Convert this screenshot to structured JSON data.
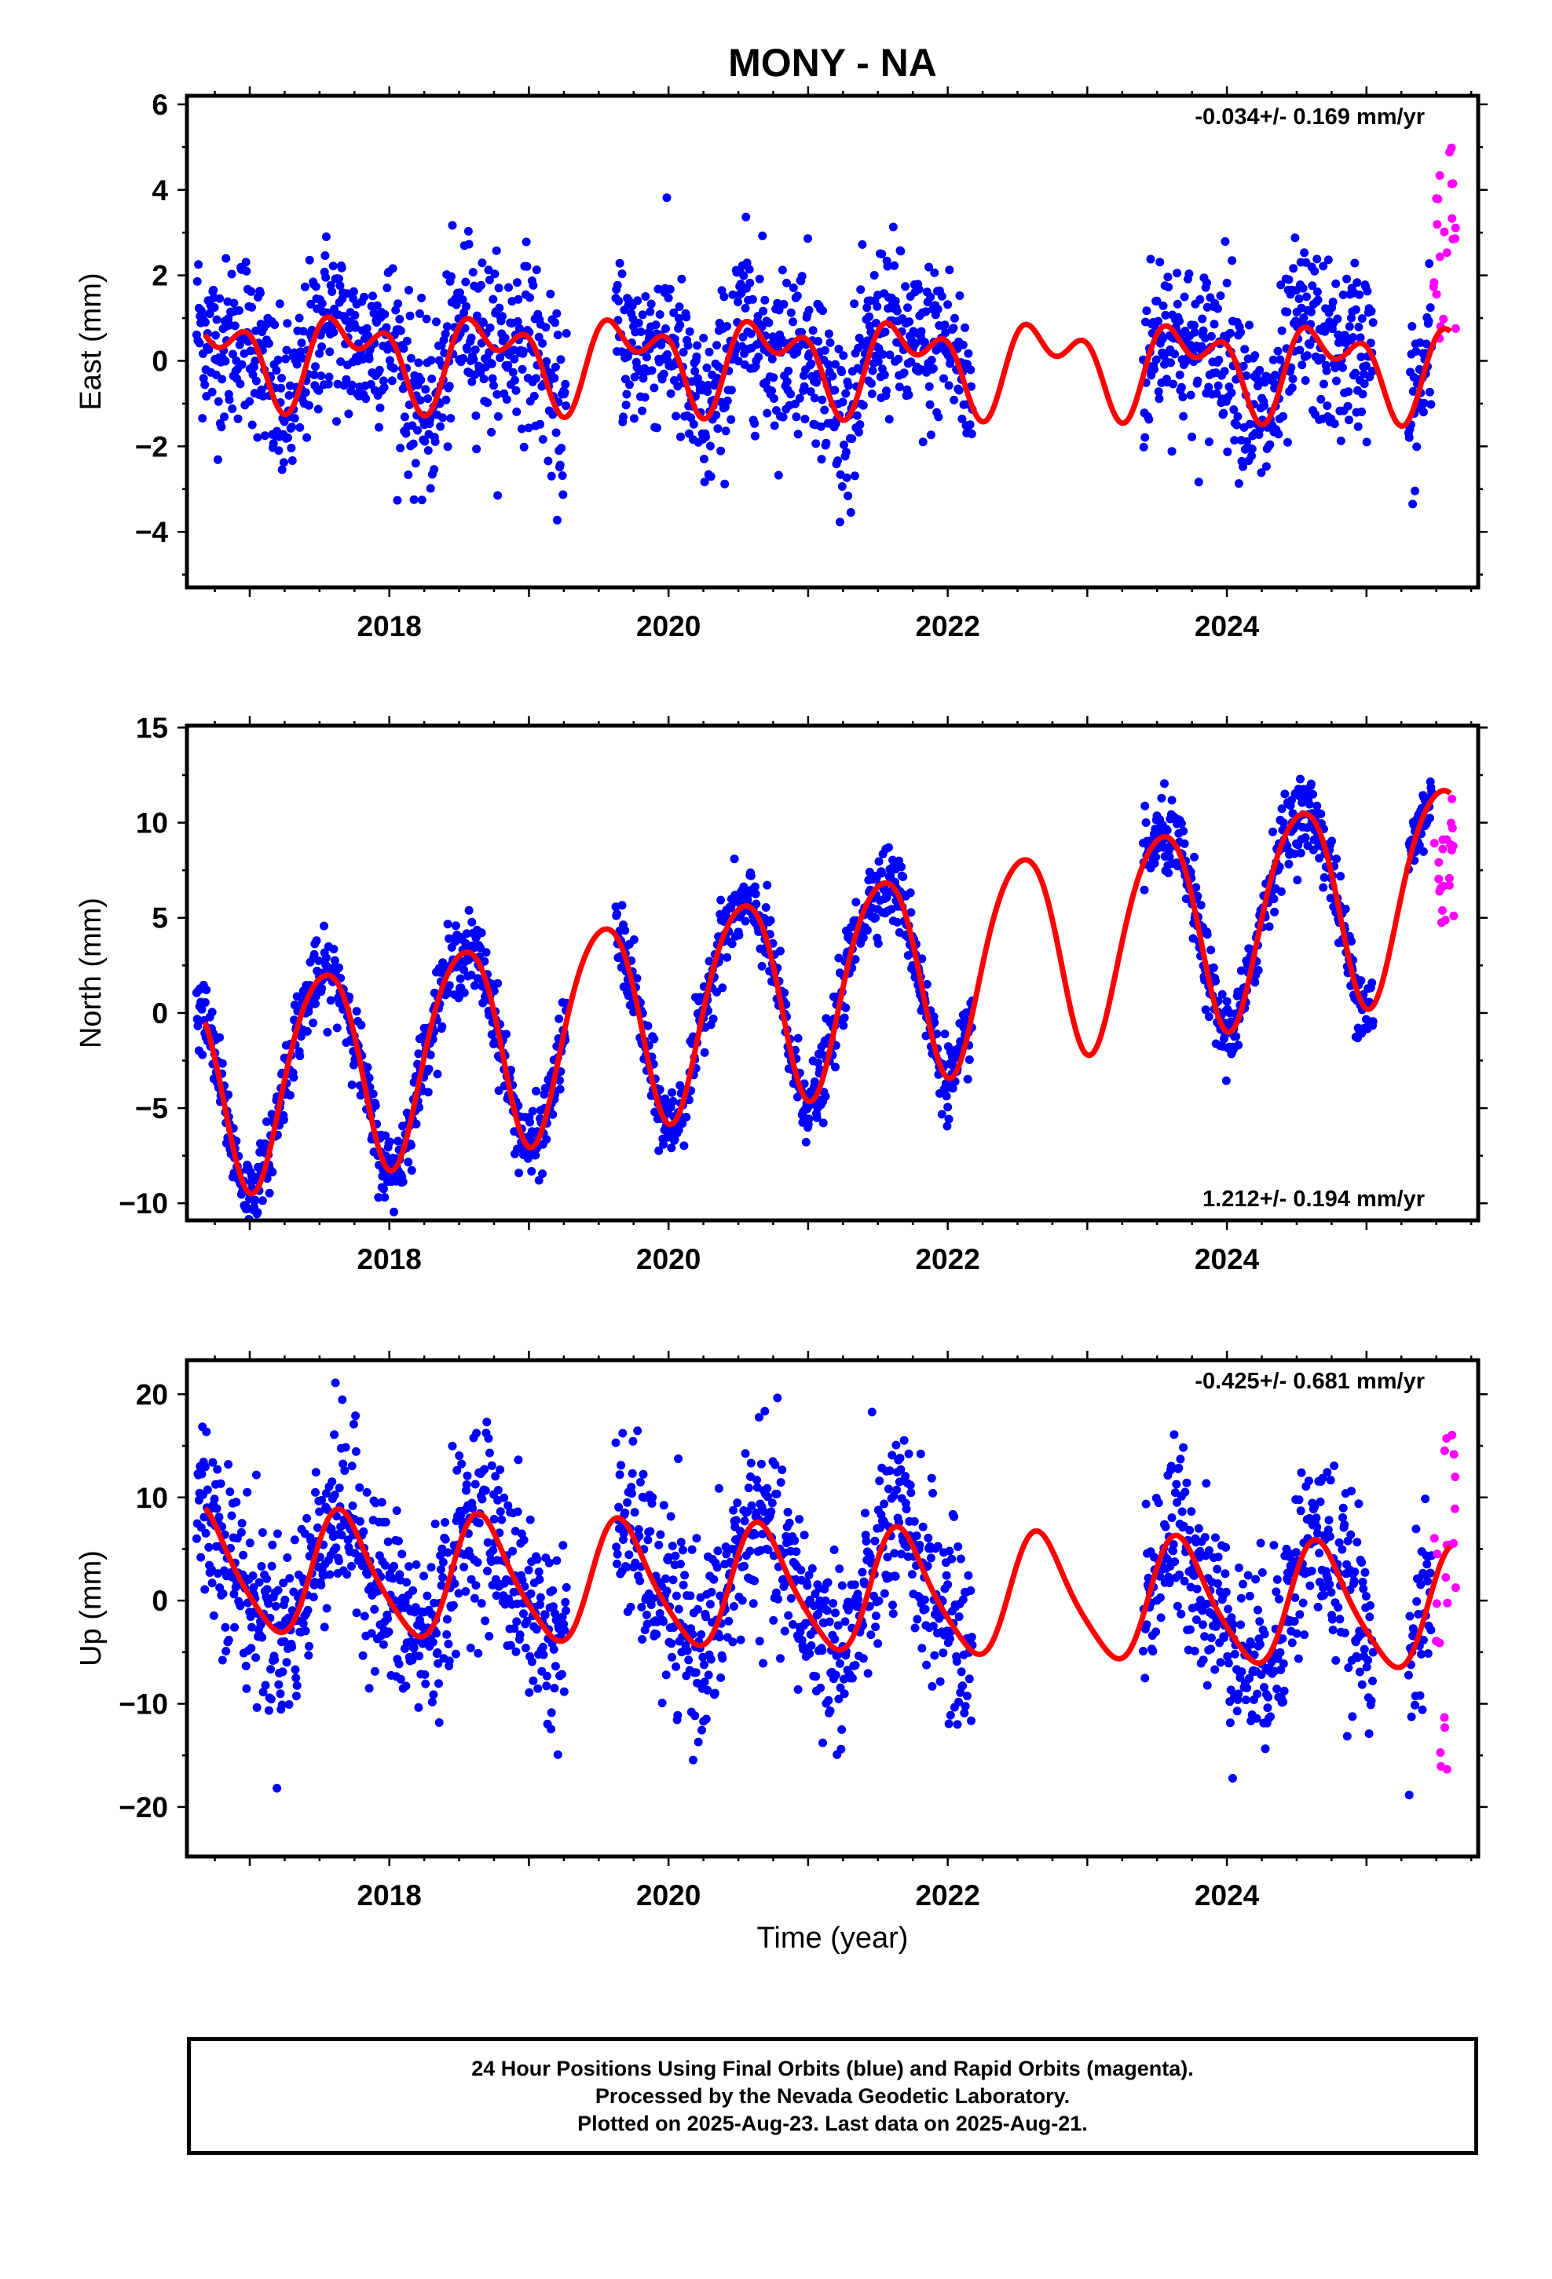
{
  "title": "MONY - NA",
  "colors": {
    "final_orbits": "#0000ff",
    "rapid_orbits": "#ff00ff",
    "model_fit": "#ff0000",
    "frame": "#000000"
  },
  "footer": {
    "line1": "24 Hour Positions Using Final Orbits (blue) and Rapid Orbits (magenta).",
    "line2": "Processed by the Nevada Geodetic Laboratory.",
    "line3": "Plotted on 2025-Aug-23. Last data on 2025-Aug-21."
  },
  "chart_data": [
    {
      "type": "scatter",
      "panel": "east",
      "title": "",
      "xlabel": "",
      "ylabel": "East (mm)",
      "rate_label": "-0.034+/- 0.169 mm/yr",
      "rate_label_position": "top-right",
      "xlim": [
        2016.55,
        2025.8
      ],
      "ylim": [
        -5.3,
        6.2
      ],
      "x_ticks": [
        2018,
        2020,
        2022,
        2024
      ],
      "y_ticks": [
        -4,
        -2,
        0,
        2,
        4,
        6
      ],
      "grid": false,
      "model": {
        "offset": 0.0,
        "slope": -0.034,
        "annual_amp": 0.8,
        "annual_phase_day": 265,
        "semiannual_amp": 0.6,
        "semiannual_phase_day": 5
      },
      "noise_sd": 1.0,
      "rapid_points": {
        "x_range": [
          2025.48,
          2025.64
        ],
        "y_range": [
          0.5,
          5.0
        ]
      }
    },
    {
      "type": "scatter",
      "panel": "north",
      "title": "",
      "xlabel": "",
      "ylabel": "North (mm)",
      "rate_label": "1.212+/- 0.194 mm/yr",
      "rate_label_position": "bottom-right",
      "xlim": [
        2016.55,
        2025.8
      ],
      "ylim": [
        -10.9,
        15.1
      ],
      "x_ticks": [
        2018,
        2020,
        2022,
        2024
      ],
      "y_ticks": [
        -10,
        -5,
        0,
        5,
        10,
        15
      ],
      "grid": false,
      "model": {
        "offset": 1.3,
        "slope": 1.212,
        "annual_amp": 5.4,
        "annual_phase_day": 192,
        "semiannual_amp": 0.6,
        "semiannual_phase_day": 90
      },
      "noise_sd": 1.0,
      "rapid_points": {
        "x_range": [
          2025.48,
          2025.64
        ],
        "y_range": [
          4.5,
          11.5
        ]
      }
    },
    {
      "type": "scatter",
      "panel": "up",
      "title": "",
      "xlabel": "Time (year)",
      "ylabel": "Up (mm)",
      "rate_label": "-0.425+/- 0.681 mm/yr",
      "rate_label_position": "top-right",
      "xlim": [
        2016.55,
        2025.8
      ],
      "ylim": [
        -24.8,
        23.3
      ],
      "x_ticks": [
        2018,
        2020,
        2022,
        2024
      ],
      "y_ticks": [
        -20,
        -10,
        0,
        10,
        20
      ],
      "grid": false,
      "model": {
        "offset": 1.0,
        "slope": -0.425,
        "annual_amp": 5.8,
        "annual_phase_day": 245,
        "semiannual_amp": 1.0,
        "semiannual_phase_day": 30
      },
      "noise_sd": 4.5,
      "rapid_points": {
        "x_range": [
          2025.48,
          2025.64
        ],
        "y_range": [
          -16.5,
          16.3
        ]
      }
    }
  ],
  "data_gaps": [
    [
      2019.27,
      2019.62
    ],
    [
      2022.18,
      2023.4
    ],
    [
      2025.05,
      2025.3
    ]
  ]
}
